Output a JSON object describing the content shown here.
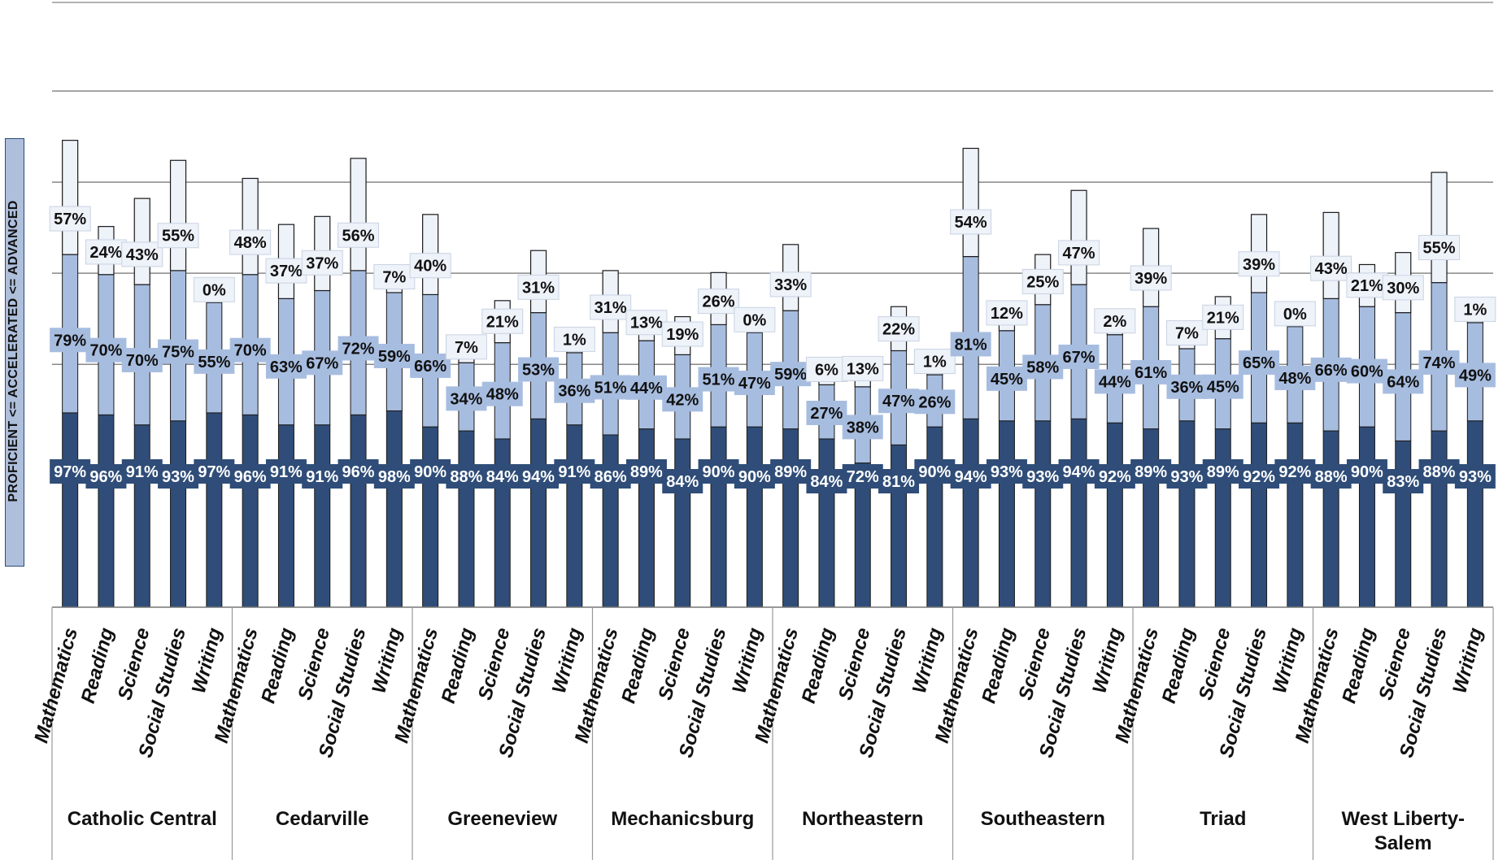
{
  "chart_data": {
    "type": "bar",
    "stacked": true,
    "ylabel": "PROFICIENT <=   ACCELERATED <=   ADVANCED",
    "ylim": [
      0,
      100
    ],
    "grid": true,
    "colors": {
      "proficient": "#2f4d78",
      "accelerated": "#a7bde0",
      "advanced": "#eef2f9",
      "outline": "#1a1a1a",
      "grid": "#888888"
    },
    "subjects": [
      "Mathematics",
      "Reading",
      "Science",
      "Social Studies",
      "Writing"
    ],
    "groups": [
      {
        "name": "Catholic Central",
        "proficient": [
          97,
          96,
          91,
          93,
          97
        ],
        "accelerated": [
          79,
          70,
          70,
          75,
          55
        ],
        "advanced": [
          57,
          24,
          43,
          55,
          0
        ]
      },
      {
        "name": "Cedarville",
        "proficient": [
          96,
          91,
          91,
          96,
          98
        ],
        "accelerated": [
          70,
          63,
          67,
          72,
          59
        ],
        "advanced": [
          48,
          37,
          37,
          56,
          7
        ]
      },
      {
        "name": "Greeneview",
        "proficient": [
          90,
          88,
          84,
          94,
          91
        ],
        "accelerated": [
          66,
          34,
          48,
          53,
          36
        ],
        "advanced": [
          40,
          7,
          21,
          31,
          1
        ]
      },
      {
        "name": "Mechanicsburg",
        "proficient": [
          86,
          89,
          84,
          90,
          90
        ],
        "accelerated": [
          51,
          44,
          42,
          51,
          47
        ],
        "advanced": [
          31,
          13,
          19,
          26,
          0
        ]
      },
      {
        "name": "Northeastern",
        "proficient": [
          89,
          84,
          72,
          81,
          90
        ],
        "accelerated": [
          59,
          27,
          38,
          47,
          26
        ],
        "advanced": [
          33,
          6,
          13,
          22,
          1
        ]
      },
      {
        "name": "Southeastern",
        "proficient": [
          94,
          93,
          93,
          94,
          92
        ],
        "accelerated": [
          81,
          45,
          58,
          67,
          44
        ],
        "advanced": [
          54,
          12,
          25,
          47,
          2
        ]
      },
      {
        "name": "Triad",
        "proficient": [
          89,
          93,
          89,
          92,
          92
        ],
        "accelerated": [
          61,
          36,
          45,
          65,
          48
        ],
        "advanced": [
          39,
          7,
          21,
          39,
          0
        ]
      },
      {
        "name": "West Liberty-Salem",
        "proficient": [
          88,
          90,
          83,
          88,
          93
        ],
        "accelerated": [
          66,
          60,
          64,
          74,
          49
        ],
        "advanced": [
          43,
          21,
          30,
          55,
          1
        ]
      }
    ]
  }
}
